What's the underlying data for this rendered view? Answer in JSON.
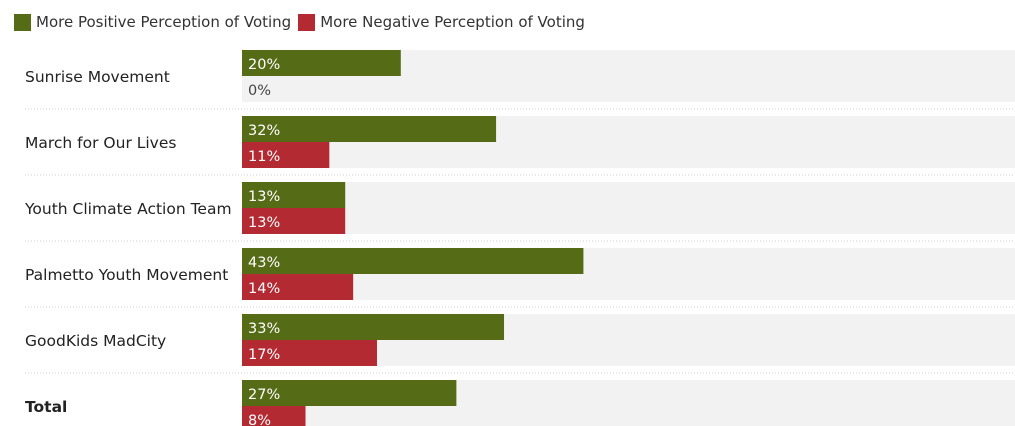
{
  "legend": {
    "positive_label": "More Positive Perception of Voting",
    "negative_label": "More Negative Perception of Voting"
  },
  "colors": {
    "positive": "#556b16",
    "negative": "#b42a33",
    "track": "#f2f2f2"
  },
  "chart_data": {
    "type": "bar",
    "orientation": "horizontal",
    "title": "",
    "categories": [
      "Sunrise Movement",
      "March for Our Lives",
      "Youth Climate Action Team",
      "Palmetto Youth Movement",
      "GoodKids MadCity",
      "Total"
    ],
    "series": [
      {
        "name": "More Positive Perception of Voting",
        "values": [
          20,
          32,
          13,
          43,
          33,
          27
        ]
      },
      {
        "name": "More Negative Perception of Voting",
        "values": [
          0,
          11,
          13,
          14,
          17,
          8
        ]
      }
    ],
    "data_labels": [
      [
        "20%",
        "32%",
        "13%",
        "43%",
        "33%",
        "27%"
      ],
      [
        "0%",
        "11%",
        "13%",
        "14%",
        "17%",
        "8%"
      ]
    ],
    "bold_categories": [
      "Total"
    ],
    "value_unit": "%",
    "xlim": [
      0,
      100
    ],
    "legend_position": "top-left",
    "grid": false
  }
}
